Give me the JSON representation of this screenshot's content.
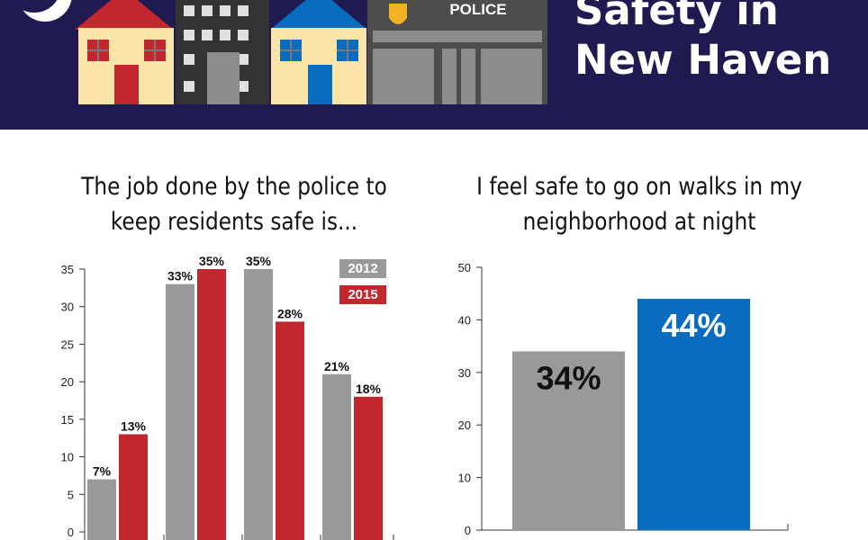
{
  "banner": {
    "title_line1": "Safety in",
    "title_line2": "New Haven",
    "police_sign": "POLICE",
    "background": "#1f1a4f"
  },
  "colors": {
    "y2012": "#999999",
    "y2015": "#c1272d",
    "walk_2012": "#999999",
    "walk_2015": "#0a6cbf"
  },
  "chart_data": [
    {
      "type": "bar",
      "title": "The job done by the police to keep residents safe is...",
      "categories": [
        "",
        "",
        "",
        ""
      ],
      "series": [
        {
          "name": "2012",
          "values": [
            7,
            33,
            35,
            21
          ],
          "labels": [
            "7%",
            "33%",
            "35%",
            "21%"
          ]
        },
        {
          "name": "2015",
          "values": [
            13,
            35,
            28,
            18
          ],
          "labels": [
            "13%",
            "35%",
            "28%",
            "18%"
          ]
        }
      ],
      "ylim": [
        0,
        35
      ],
      "yticks": [
        0,
        5,
        10,
        15,
        20,
        25,
        30,
        35
      ],
      "legend": "top-right",
      "grid": false
    },
    {
      "type": "bar",
      "title": "I feel safe to go on walks in my neighborhood at night",
      "categories": [
        "",
        ""
      ],
      "values": [
        34,
        44
      ],
      "labels": [
        "34%",
        "44%"
      ],
      "ylim": [
        0,
        50
      ],
      "yticks": [
        0,
        10,
        20,
        30,
        40,
        50
      ],
      "grid": false
    }
  ]
}
